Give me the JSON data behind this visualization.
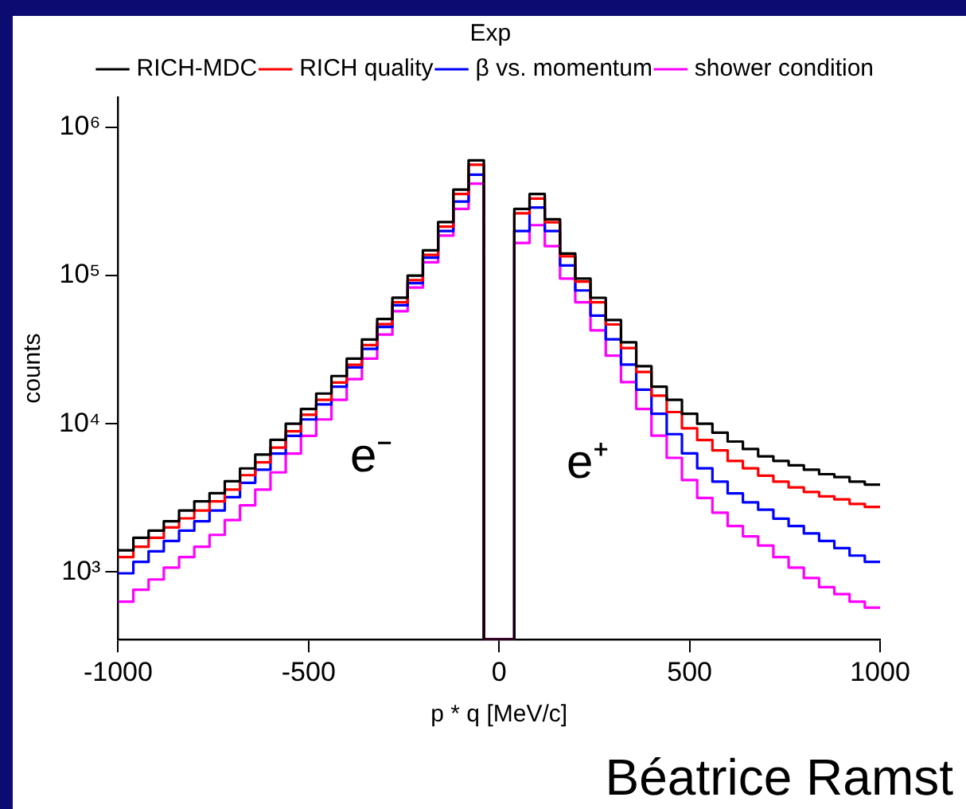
{
  "chart_data": {
    "type": "histogram",
    "xlabel": "p * q [MeV/c]",
    "ylabel": "counts",
    "legend_title": "Exp",
    "legend": "top right",
    "log": "y",
    "grid": false,
    "bins": [
      -1000,
      -960,
      -920,
      -880,
      -840,
      -800,
      -760,
      -720,
      -680,
      -640,
      -600,
      -560,
      -520,
      -480,
      -440,
      -400,
      -360,
      -320,
      -280,
      -240,
      -200,
      -160,
      -120,
      -80,
      -40,
      0,
      40,
      80,
      120,
      160,
      200,
      240,
      280,
      320,
      360,
      400,
      440,
      480,
      520,
      560,
      600,
      640,
      680,
      720,
      760,
      800,
      840,
      880,
      920,
      960,
      1000
    ],
    "xlim": [
      -1000,
      1000
    ],
    "xticks": [
      -1000,
      -500,
      0,
      500,
      1000
    ],
    "ylim": [
      350,
      1600000
    ],
    "yticks": [
      {
        "value": 1000,
        "label": "10³"
      },
      {
        "value": 10000,
        "label": "10⁴"
      },
      {
        "value": 100000,
        "label": "10⁵"
      },
      {
        "value": 1000000,
        "label": "10⁶"
      }
    ],
    "series": [
      {
        "name": "RICH-MDC",
        "color": "#000000",
        "values": [
          1400,
          1700,
          1900,
          2200,
          2600,
          3000,
          3400,
          4100,
          5000,
          6200,
          7800,
          10000,
          12600,
          16000,
          21000,
          27500,
          37000,
          51000,
          71000,
          100000,
          148000,
          230000,
          380000,
          600000,
          null,
          null,
          282000,
          355000,
          240000,
          141000,
          95500,
          70800,
          50100,
          35500,
          24500,
          17800,
          14500,
          11700,
          10000,
          8710,
          7590,
          6760,
          6030,
          5620,
          5250,
          4900,
          4570,
          4370,
          4070,
          3890
        ]
      },
      {
        "name": "RICH quality",
        "color": "#ff0000",
        "values": [
          1260,
          1480,
          1700,
          2000,
          2300,
          2600,
          3000,
          3600,
          4500,
          5500,
          6900,
          8900,
          11500,
          14500,
          19000,
          25000,
          34000,
          47000,
          66000,
          93000,
          138000,
          214000,
          355000,
          560000,
          null,
          null,
          263000,
          331000,
          229000,
          135000,
          91200,
          66100,
          46800,
          32400,
          22400,
          15500,
          12000,
          9330,
          7760,
          6610,
          5620,
          5010,
          4470,
          4070,
          3720,
          3470,
          3240,
          3090,
          2880,
          2750
        ]
      },
      {
        "name": "β vs. momentum",
        "color": "#0000ff",
        "values": [
          980,
          1170,
          1380,
          1620,
          1900,
          2200,
          2600,
          3200,
          4000,
          4900,
          6300,
          8300,
          10700,
          13500,
          17800,
          24000,
          32000,
          45000,
          63000,
          89000,
          132000,
          200000,
          316000,
          480000,
          null,
          null,
          200000,
          288000,
          200000,
          117000,
          79400,
          53700,
          37200,
          25100,
          17000,
          11700,
          8510,
          6310,
          5010,
          4070,
          3390,
          2950,
          2630,
          2290,
          2040,
          1820,
          1620,
          1450,
          1290,
          1170
        ]
      },
      {
        "name": "shower condition",
        "color": "#ff00ff",
        "values": [
          630,
          760,
          890,
          1070,
          1260,
          1480,
          1780,
          2240,
          2820,
          3600,
          4700,
          6300,
          8300,
          10700,
          14500,
          20000,
          27500,
          40000,
          57500,
          83000,
          123000,
          186000,
          282000,
          417000,
          null,
          null,
          166000,
          219000,
          158000,
          95500,
          66100,
          42700,
          28800,
          19100,
          12600,
          8320,
          5890,
          4170,
          3160,
          2510,
          2040,
          1740,
          1510,
          1260,
          1070,
          910,
          790,
          710,
          630,
          575
        ]
      }
    ],
    "annotations": [
      "e⁻",
      "e⁺",
      "Béatrice Ramst"
    ]
  }
}
